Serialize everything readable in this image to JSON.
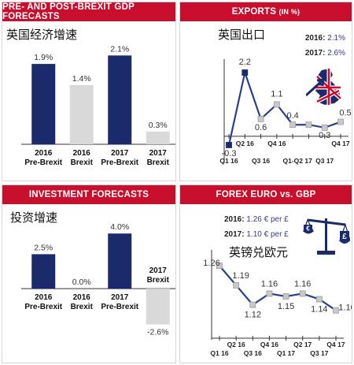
{
  "panels": {
    "gdp": {
      "title": "PRE- AND POST-BREXIT GDP FORECASTS",
      "subtitle_cn": "英国经济增速"
    },
    "exports": {
      "title_main": "EXPORTS",
      "title_unit": "(IN %)",
      "subtitle_cn": "英国出口",
      "legend": [
        {
          "label": "2016:",
          "value": "2.1%"
        },
        {
          "label": "2017:",
          "value": "2.6%"
        }
      ]
    },
    "investment": {
      "title": "INVESTMENT FORECASTS",
      "subtitle_cn": "投资增速"
    },
    "forex": {
      "title": "FOREX EURO vs. GBP",
      "subtitle_cn": "英镑兑欧元",
      "legend": [
        {
          "label": "2016:",
          "value": "1.26 € per £"
        },
        {
          "label": "2017:",
          "value": "1.10 € per £"
        }
      ]
    }
  },
  "colors": {
    "header_red": "#c8102e",
    "navy": "#1b2a6b",
    "light_grey": "#d9d9d9",
    "line_blue": "#2b3f8f",
    "marker_grey": "#c9c9c9"
  },
  "chart_data": [
    {
      "id": "gdp",
      "type": "bar",
      "categories": [
        [
          "2016",
          "Pre-Brexit"
        ],
        [
          "2016",
          "Brexit"
        ],
        [
          "2017",
          "Pre-Brexit"
        ],
        [
          "2017",
          "Brexit"
        ]
      ],
      "values": [
        1.9,
        1.4,
        2.1,
        0.3
      ],
      "labels": [
        "1.9%",
        "1.4%",
        "2.1%",
        "0.3%"
      ],
      "bar_colors": [
        "navy",
        "grey",
        "navy",
        "grey"
      ],
      "ylim": [
        0,
        2.2
      ]
    },
    {
      "id": "investment",
      "type": "bar",
      "categories": [
        [
          "2016",
          "Pre-Brexit"
        ],
        [
          "2016",
          "Brexit"
        ],
        [
          "2017",
          "Pre-Brexit"
        ],
        [
          "2017",
          "Brexit"
        ]
      ],
      "values": [
        2.5,
        0.0,
        4.0,
        -2.6
      ],
      "labels": [
        "2.5%",
        "0.0%",
        "4.0%",
        "-2.6%"
      ],
      "bar_colors": [
        "navy",
        "grey",
        "navy",
        "grey"
      ],
      "ylim": [
        -2.8,
        4.3
      ]
    },
    {
      "id": "exports",
      "type": "line",
      "x": [
        "Q1 16",
        "Q2 16",
        "Q3 16",
        "Q4 16",
        "Q1 17",
        "Q2 17",
        "Q3 17",
        "Q4 17"
      ],
      "x_tick_labels": [
        "Q1 16",
        "Q2 16",
        "Q3 16",
        "Q4 16",
        "Q1-Q2 17",
        "",
        "Q3 17",
        "Q4 17"
      ],
      "y": [
        -0.3,
        2.2,
        0.6,
        1.1,
        0.4,
        0.4,
        0.3,
        0.5
      ],
      "labels": [
        "-0.3",
        "2.2",
        "0.6",
        "1.1",
        "0.4",
        "",
        "0.3",
        "0.5"
      ],
      "ylim": [
        -0.6,
        2.5
      ]
    },
    {
      "id": "forex",
      "type": "line",
      "x": [
        "Q1 16",
        "Q2 16",
        "Q3 16",
        "Q4 16",
        "Q1 17",
        "Q2 17",
        "Q3 17",
        "Q4 17"
      ],
      "y": [
        1.26,
        1.19,
        1.12,
        1.16,
        1.15,
        1.16,
        1.14,
        1.1
      ],
      "labels": [
        "1.26",
        "1.19",
        "1.12",
        "1.16",
        "1.15",
        "1.16",
        "1.14",
        "1.10"
      ],
      "ylim": [
        1.0,
        1.3
      ]
    }
  ]
}
